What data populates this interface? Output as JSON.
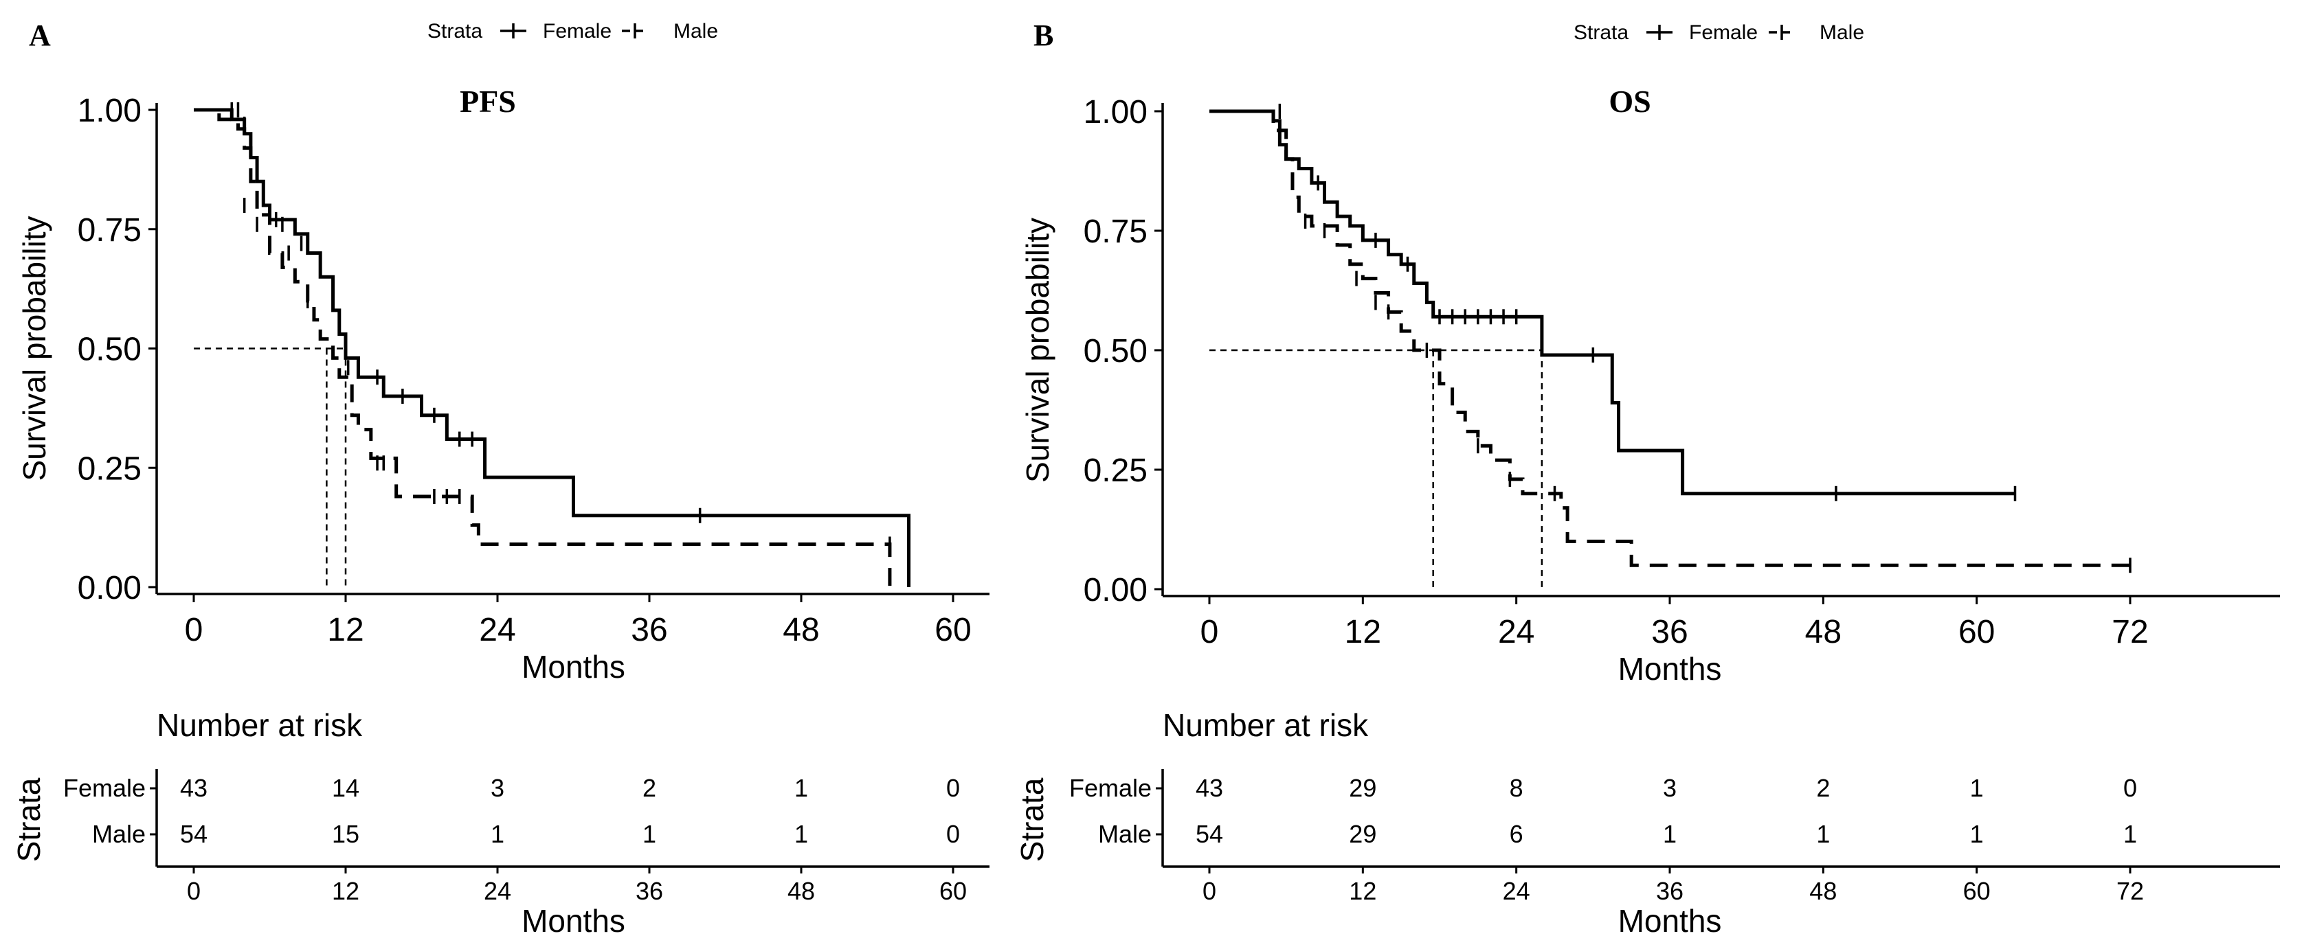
{
  "legend": {
    "title": "Strata",
    "items": [
      "Female",
      "Male"
    ]
  },
  "chart_data": [
    {
      "type": "line",
      "panel_label": "A",
      "title": "PFS",
      "xlabel": "Months",
      "ylabel": "Survival probability",
      "xlim": [
        0,
        60
      ],
      "ylim": [
        0,
        1
      ],
      "xticks": [
        "0",
        "12",
        "24",
        "36",
        "48",
        "60"
      ],
      "yticks": [
        "0.00",
        "0.25",
        "0.50",
        "0.75",
        "1.00"
      ],
      "series": [
        {
          "name": "Female",
          "style": "solid",
          "steps": [
            [
              0,
              1.0
            ],
            [
              3,
              0.98
            ],
            [
              4,
              0.95
            ],
            [
              4.5,
              0.9
            ],
            [
              5,
              0.85
            ],
            [
              5.5,
              0.8
            ],
            [
              6,
              0.77
            ],
            [
              8,
              0.74
            ],
            [
              9,
              0.7
            ],
            [
              10,
              0.65
            ],
            [
              11,
              0.58
            ],
            [
              11.5,
              0.53
            ],
            [
              12,
              0.48
            ],
            [
              13,
              0.44
            ],
            [
              15,
              0.4
            ],
            [
              18,
              0.36
            ],
            [
              20,
              0.31
            ],
            [
              23,
              0.23
            ],
            [
              30,
              0.15
            ],
            [
              56.5,
              0.15
            ],
            [
              56.5,
              0.0
            ]
          ],
          "censor": [
            [
              3,
              1.0
            ],
            [
              4,
              0.97
            ],
            [
              6.5,
              0.77
            ],
            [
              7,
              0.76
            ],
            [
              8.5,
              0.72
            ],
            [
              12.2,
              0.46
            ],
            [
              14.5,
              0.44
            ],
            [
              16.5,
              0.4
            ],
            [
              19,
              0.36
            ],
            [
              21,
              0.31
            ],
            [
              22,
              0.31
            ],
            [
              40,
              0.15
            ]
          ],
          "median": 12
        },
        {
          "name": "Male",
          "style": "dashed",
          "steps": [
            [
              0,
              1.0
            ],
            [
              2,
              0.98
            ],
            [
              3.5,
              0.96
            ],
            [
              4,
              0.92
            ],
            [
              4.5,
              0.85
            ],
            [
              5,
              0.78
            ],
            [
              6,
              0.7
            ],
            [
              7,
              0.67
            ],
            [
              8,
              0.64
            ],
            [
              9,
              0.6
            ],
            [
              9.5,
              0.56
            ],
            [
              10,
              0.52
            ],
            [
              11,
              0.48
            ],
            [
              11.5,
              0.44
            ],
            [
              12.5,
              0.36
            ],
            [
              13,
              0.33
            ],
            [
              14,
              0.27
            ],
            [
              16,
              0.19
            ],
            [
              22,
              0.13
            ],
            [
              22.5,
              0.09
            ],
            [
              55,
              0.05
            ],
            [
              55,
              0.0
            ]
          ],
          "censor": [
            [
              3.5,
              1.0
            ],
            [
              4,
              0.8
            ],
            [
              5,
              0.76
            ],
            [
              7.5,
              0.7
            ],
            [
              9,
              0.6
            ],
            [
              14.5,
              0.26
            ],
            [
              15,
              0.26
            ],
            [
              19,
              0.19
            ],
            [
              20,
              0.19
            ],
            [
              21,
              0.19
            ],
            [
              55,
              0.09
            ]
          ],
          "median": 10.5
        }
      ],
      "risk_table": {
        "title": "Number at risk",
        "ylabel": "Strata",
        "xlabel": "Months",
        "rows": [
          {
            "name": "Female",
            "values": [
              "43",
              "14",
              "3",
              "2",
              "1",
              "0"
            ]
          },
          {
            "name": "Male",
            "values": [
              "54",
              "15",
              "1",
              "1",
              "1",
              "0"
            ]
          }
        ]
      }
    },
    {
      "type": "line",
      "panel_label": "B",
      "title": "OS",
      "xlabel": "Months",
      "ylabel": "Survival probability",
      "xlim": [
        0,
        84
      ],
      "ylim": [
        0,
        1
      ],
      "xticks": [
        "0",
        "12",
        "24",
        "36",
        "48",
        "60",
        "72"
      ],
      "yticks": [
        "0.00",
        "0.25",
        "0.50",
        "0.75",
        "1.00"
      ],
      "series": [
        {
          "name": "Female",
          "style": "solid",
          "steps": [
            [
              0,
              1.0
            ],
            [
              5,
              0.98
            ],
            [
              5.5,
              0.93
            ],
            [
              6,
              0.9
            ],
            [
              7,
              0.88
            ],
            [
              8,
              0.85
            ],
            [
              9,
              0.81
            ],
            [
              10,
              0.78
            ],
            [
              11,
              0.76
            ],
            [
              12,
              0.73
            ],
            [
              14,
              0.7
            ],
            [
              15,
              0.68
            ],
            [
              16,
              0.64
            ],
            [
              17,
              0.6
            ],
            [
              17.5,
              0.57
            ],
            [
              26,
              0.49
            ],
            [
              31.5,
              0.39
            ],
            [
              32,
              0.29
            ],
            [
              37,
              0.2
            ],
            [
              63,
              0.2
            ]
          ],
          "censor": [
            [
              5.5,
              1.0
            ],
            [
              8.5,
              0.85
            ],
            [
              13,
              0.73
            ],
            [
              15.5,
              0.68
            ],
            [
              18,
              0.57
            ],
            [
              19,
              0.57
            ],
            [
              20,
              0.57
            ],
            [
              21,
              0.57
            ],
            [
              22,
              0.57
            ],
            [
              23,
              0.57
            ],
            [
              24,
              0.57
            ],
            [
              30,
              0.49
            ],
            [
              49,
              0.2
            ],
            [
              63,
              0.2
            ]
          ],
          "median": 26
        },
        {
          "name": "Male",
          "style": "dashed",
          "steps": [
            [
              0,
              1.0
            ],
            [
              5,
              0.96
            ],
            [
              6,
              0.9
            ],
            [
              6.5,
              0.82
            ],
            [
              7,
              0.78
            ],
            [
              8,
              0.76
            ],
            [
              10,
              0.72
            ],
            [
              11,
              0.68
            ],
            [
              12,
              0.65
            ],
            [
              13,
              0.62
            ],
            [
              14,
              0.58
            ],
            [
              15,
              0.54
            ],
            [
              16,
              0.5
            ],
            [
              18,
              0.43
            ],
            [
              19,
              0.37
            ],
            [
              20,
              0.33
            ],
            [
              21,
              0.3
            ],
            [
              22,
              0.27
            ],
            [
              23.5,
              0.23
            ],
            [
              24.5,
              0.2
            ],
            [
              27.5,
              0.17
            ],
            [
              28,
              0.1
            ],
            [
              33,
              0.05
            ],
            [
              72,
              0.05
            ]
          ],
          "censor": [
            [
              5.5,
              0.96
            ],
            [
              7.5,
              0.77
            ],
            [
              9,
              0.75
            ],
            [
              11.5,
              0.65
            ],
            [
              13,
              0.6
            ],
            [
              14,
              0.58
            ],
            [
              17,
              0.5
            ],
            [
              21,
              0.3
            ],
            [
              23.5,
              0.23
            ],
            [
              27,
              0.2
            ],
            [
              72,
              0.05
            ]
          ],
          "median": 17.5
        }
      ],
      "risk_table": {
        "title": "Number at risk",
        "ylabel": "Strata",
        "xlabel": "Months",
        "rows": [
          {
            "name": "Female",
            "values": [
              "43",
              "29",
              "8",
              "3",
              "2",
              "1",
              "0"
            ]
          },
          {
            "name": "Male",
            "values": [
              "54",
              "29",
              "6",
              "1",
              "1",
              "1",
              "1"
            ]
          }
        ]
      }
    }
  ]
}
